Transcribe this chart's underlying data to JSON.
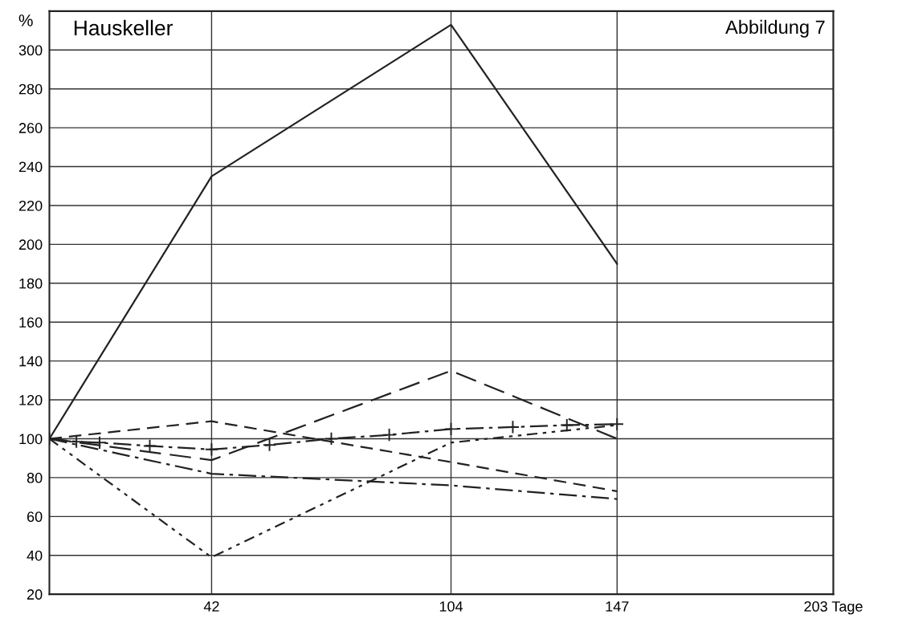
{
  "chart_data": {
    "type": "line",
    "title": "Hauskeller",
    "annotations": [
      "Abbildung 7"
    ],
    "ylabel": "%",
    "xlim": [
      0,
      203
    ],
    "ylim": [
      20,
      320
    ],
    "xticks": [
      42,
      104,
      147,
      {
        "value": 203,
        "label": "203 Tage"
      }
    ],
    "yticks": [
      20,
      40,
      60,
      80,
      100,
      120,
      140,
      160,
      180,
      200,
      220,
      240,
      260,
      280,
      300
    ],
    "grid": true,
    "series": [
      {
        "color": "#222222",
        "line_style": "solid",
        "x": [
          0,
          42,
          104,
          147
        ],
        "values": [
          100,
          235,
          313,
          190
        ]
      },
      {
        "color": "#222222",
        "line_style": "longdash",
        "x": [
          0,
          42,
          104,
          147
        ],
        "values": [
          100,
          89,
          135,
          100
        ]
      },
      {
        "color": "#222222",
        "line_style": "dashed",
        "x": [
          0,
          42,
          104,
          147
        ],
        "values": [
          100,
          109,
          88,
          73
        ]
      },
      {
        "color": "#222222",
        "line_style": "dashdot",
        "x": [
          0,
          42,
          104,
          147
        ],
        "values": [
          100,
          82,
          76,
          69
        ]
      },
      {
        "color": "#222222",
        "line_style": "dashdotdot",
        "x": [
          0,
          42,
          104,
          147
        ],
        "values": [
          100,
          39,
          98,
          107
        ]
      },
      {
        "color": "#222222",
        "line_style": "dashdot",
        "marker": "cross",
        "x": [
          0,
          7,
          13,
          26,
          42,
          57,
          73,
          88,
          104,
          120,
          134,
          147
        ],
        "values": [
          100,
          98.5,
          98,
          96.3,
          94.5,
          96.8,
          100,
          102,
          105,
          106,
          107,
          107.5
        ]
      }
    ]
  }
}
